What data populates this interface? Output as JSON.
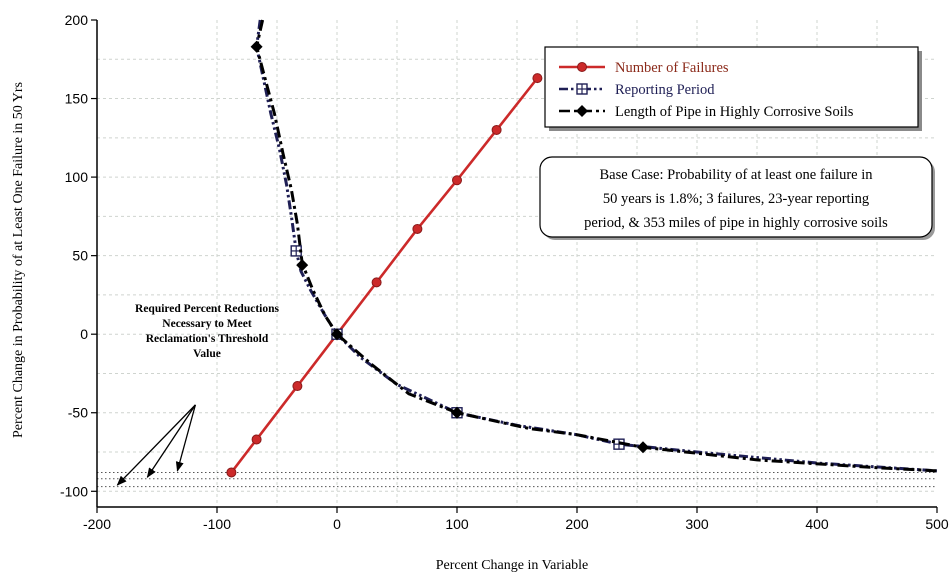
{
  "chart_data": {
    "type": "line",
    "xlabel": "Percent Change in Variable",
    "ylabel": "Percent Change in Probability of at Least One Failure in 50 Yrs",
    "xlim": [
      -200,
      500
    ],
    "ylim": [
      -110,
      200
    ],
    "x_ticks": [
      "-200",
      "-100",
      "0",
      "100",
      "200",
      "300",
      "400",
      "500"
    ],
    "y_ticks": [
      "200",
      "150",
      "100",
      "50",
      "0",
      "-50",
      "-100"
    ],
    "grid": true,
    "legend_position": "top-right",
    "series": [
      {
        "name": "Number of Failures",
        "color": "#cc2a2a",
        "style": "solid",
        "marker": "circle",
        "points": [
          [
            -88,
            -88
          ],
          [
            -67,
            -67
          ],
          [
            -33,
            -33
          ],
          [
            0,
            0
          ],
          [
            33,
            33
          ],
          [
            67,
            67
          ],
          [
            100,
            98
          ],
          [
            133,
            130
          ],
          [
            167,
            163
          ]
        ]
      },
      {
        "name": "Reporting Period",
        "color": "#1f1f55",
        "style": "dash-dot-dot",
        "marker": "square-plus",
        "curve": [
          [
            -64,
            200
          ],
          [
            -67,
            183
          ],
          [
            -55,
            140
          ],
          [
            -48,
            118
          ],
          [
            -42,
            95
          ],
          [
            -38,
            75
          ],
          [
            -34,
            53
          ],
          [
            -30,
            40
          ],
          [
            -22,
            28
          ],
          [
            -10,
            12
          ],
          [
            0,
            0
          ],
          [
            20,
            -15
          ],
          [
            50,
            -32
          ],
          [
            100,
            -50
          ],
          [
            150,
            -58
          ],
          [
            200,
            -64
          ],
          [
            235,
            -70
          ],
          [
            300,
            -75
          ],
          [
            400,
            -82
          ],
          [
            500,
            -87
          ]
        ],
        "points": [
          [
            -34,
            53
          ],
          [
            0,
            0
          ],
          [
            100,
            -50
          ],
          [
            235,
            -70
          ]
        ]
      },
      {
        "name": "Length of Pipe in Highly Corrosive Soils",
        "color": "#000000",
        "style": "dash-dot",
        "marker": "diamond",
        "curve": [
          [
            -62,
            200
          ],
          [
            -67,
            183
          ],
          [
            -52,
            140
          ],
          [
            -45,
            115
          ],
          [
            -38,
            92
          ],
          [
            -33,
            70
          ],
          [
            -29,
            45
          ],
          [
            -20,
            28
          ],
          [
            -10,
            12
          ],
          [
            0,
            0
          ],
          [
            30,
            -20
          ],
          [
            60,
            -38
          ],
          [
            100,
            -50
          ],
          [
            160,
            -60
          ],
          [
            200,
            -64
          ],
          [
            255,
            -72
          ],
          [
            350,
            -80
          ],
          [
            450,
            -85
          ],
          [
            500,
            -87
          ]
        ],
        "points": [
          [
            -67,
            183
          ],
          [
            -29,
            44
          ],
          [
            0,
            0
          ],
          [
            100,
            -50
          ],
          [
            255,
            -72
          ]
        ]
      }
    ],
    "reference_lines": [
      {
        "y": -88,
        "style": "dotted"
      },
      {
        "y": -92,
        "style": "dotted"
      },
      {
        "y": -97,
        "style": "dotted"
      }
    ],
    "annotations": {
      "base_case": [
        "Base Case: Probability of at least one failure in",
        "50 years is 1.8%; 3 failures, 23-year reporting",
        "period, & 353 miles of pipe in highly corrosive soils"
      ],
      "threshold": [
        "Required Percent Reductions",
        "Necessary to Meet",
        "Reclamation's Threshold",
        "Value"
      ],
      "threshold_arrow_targets": [
        [
          -183,
          -96
        ],
        [
          -158,
          -91
        ],
        [
          -133,
          -87
        ]
      ],
      "threshold_arrow_origin": [
        -118,
        -45
      ]
    }
  }
}
